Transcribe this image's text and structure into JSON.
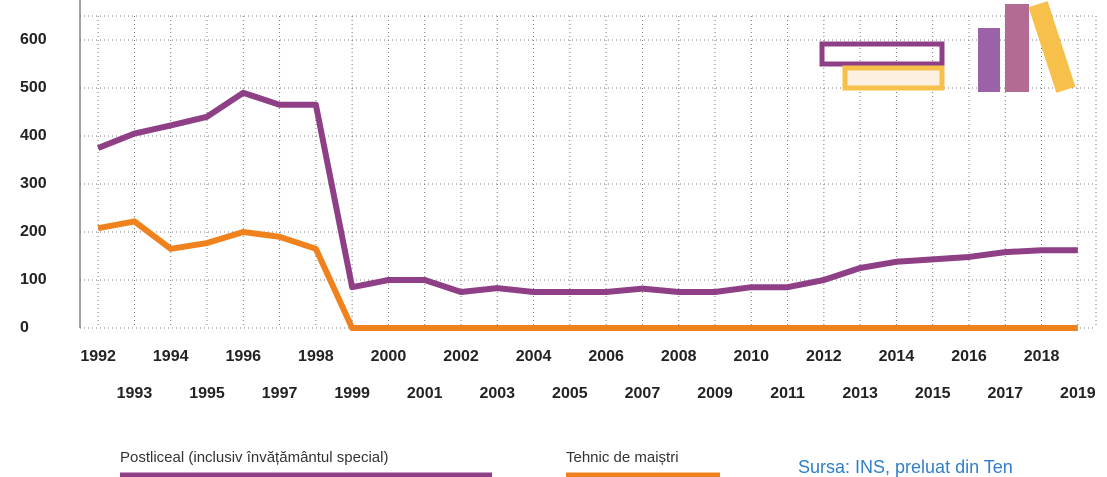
{
  "chart_data": {
    "type": "line",
    "x": [
      1992,
      1993,
      1994,
      1995,
      1996,
      1997,
      1998,
      1999,
      2000,
      2001,
      2002,
      2003,
      2004,
      2005,
      2006,
      2007,
      2008,
      2009,
      2010,
      2011,
      2012,
      2013,
      2014,
      2015,
      2016,
      2017,
      2018,
      2019
    ],
    "series": [
      {
        "name": "Postliceal (inclusiv învățământul special)",
        "color": "#8e3f86",
        "values": [
          375,
          405,
          422,
          440,
          490,
          465,
          465,
          85,
          100,
          100,
          75,
          83,
          75,
          75,
          75,
          82,
          75,
          75,
          85,
          85,
          100,
          125,
          138,
          143,
          148,
          158,
          162,
          162
        ]
      },
      {
        "name": "Tehnic de maiștri",
        "color": "#f0821e",
        "values": [
          208,
          222,
          165,
          177,
          200,
          190,
          165,
          0,
          0,
          0,
          0,
          0,
          0,
          0,
          0,
          0,
          0,
          0,
          0,
          0,
          0,
          0,
          0,
          0,
          0,
          0,
          0,
          0
        ]
      }
    ],
    "xlim": [
      1991.5,
      2019.5
    ],
    "ylim": [
      0,
      650
    ],
    "yticks": [
      0,
      100,
      200,
      300,
      400,
      500,
      600
    ],
    "grid": true,
    "source": "Sursa: INS, preluat din Ten"
  }
}
